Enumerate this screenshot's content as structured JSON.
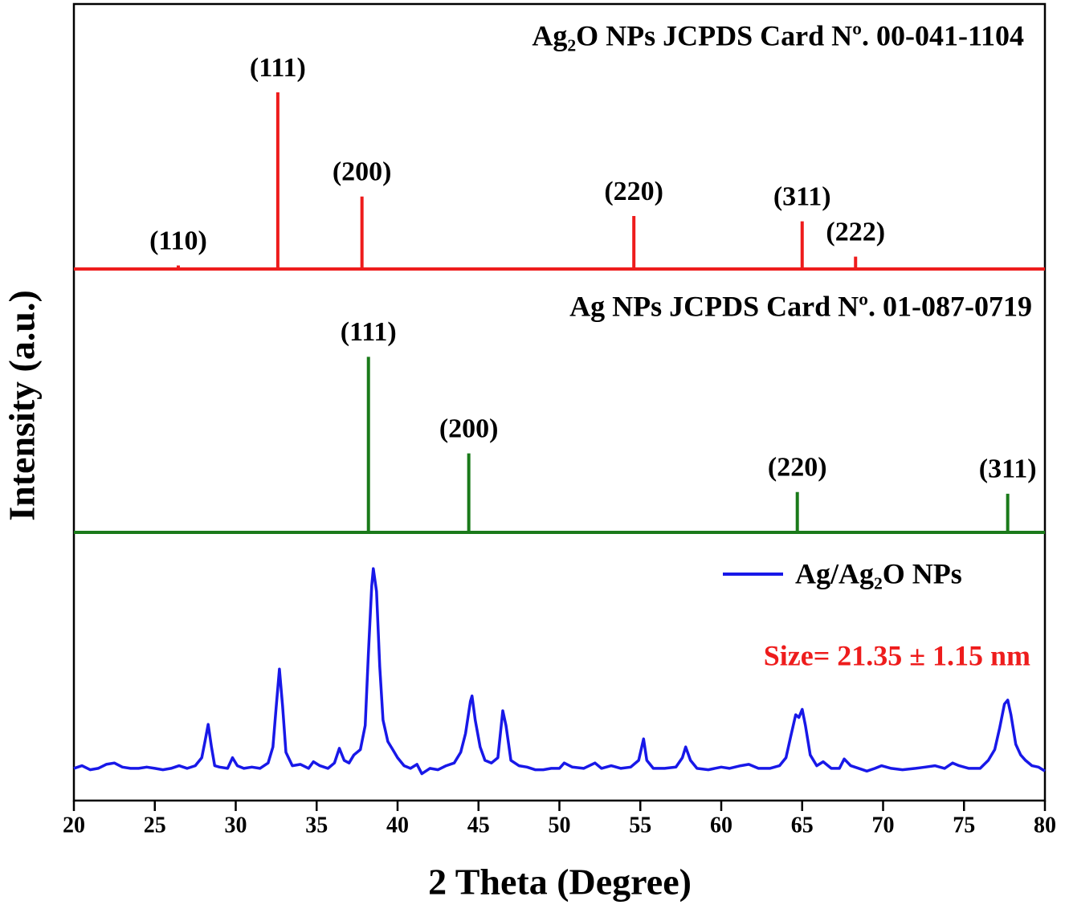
{
  "chart_data": [
    {
      "type": "stem",
      "title": "Ag₂O NPs  JCPDS Card Nº. 00-041-1104",
      "color": "#ee1c1c",
      "x": [
        26.45,
        32.6,
        37.8,
        54.6,
        65.0,
        68.3
      ],
      "values": [
        2,
        100,
        41,
        30,
        27,
        7
      ],
      "peak_labels": [
        "(110)",
        "(111)",
        "(200)",
        "(220)",
        "(311)",
        "(222)"
      ],
      "ylim": [
        0,
        150
      ]
    },
    {
      "type": "stem",
      "title": "Ag NPs  JCPDS Card Nº. 01-087-0719",
      "color": "#1a7a1a",
      "x": [
        38.2,
        44.4,
        64.7,
        77.7
      ],
      "values": [
        100,
        45,
        23,
        22
      ],
      "peak_labels": [
        "(111)",
        "(200)",
        "(220)",
        "(311)"
      ],
      "ylim": [
        0,
        150
      ]
    },
    {
      "type": "line",
      "xlabel": "2 Theta (Degree)",
      "ylabel": "Intensity (a.u.)",
      "annotation": "Size= 21.35 ± 1.15  nm",
      "xlim": [
        20,
        80
      ],
      "xticks": [
        20,
        25,
        30,
        35,
        40,
        45,
        50,
        55,
        60,
        65,
        70,
        75,
        80
      ],
      "ylim": [
        0,
        100
      ],
      "legend": "upper right",
      "x": [
        20,
        20.5,
        21,
        21.5,
        22,
        22.5,
        23,
        23.5,
        24,
        24.5,
        25,
        25.5,
        26,
        26.5,
        27,
        27.5,
        27.9,
        28.1,
        28.3,
        28.5,
        28.7,
        29,
        29.5,
        29.8,
        30.1,
        30.5,
        31,
        31.5,
        32,
        32.3,
        32.5,
        32.7,
        32.9,
        33.1,
        33.5,
        34,
        34.5,
        34.8,
        35.2,
        35.7,
        36.1,
        36.4,
        36.7,
        37,
        37.3,
        37.7,
        38,
        38.2,
        38.4,
        38.5,
        38.7,
        38.9,
        39.1,
        39.4,
        39.7,
        40,
        40.4,
        40.8,
        41.2,
        41.5,
        42,
        42.5,
        43,
        43.5,
        43.9,
        44.2,
        44.5,
        44.6,
        44.8,
        45.1,
        45.4,
        45.8,
        46.2,
        46.5,
        46.7,
        47,
        47.5,
        48,
        48.5,
        49,
        49.5,
        50,
        50.3,
        50.8,
        51.5,
        52.2,
        52.6,
        53.2,
        53.8,
        54.4,
        54.9,
        55.2,
        55.4,
        55.8,
        56.5,
        57.2,
        57.6,
        57.8,
        58.1,
        58.5,
        59.2,
        60,
        60.5,
        61.2,
        61.7,
        62.3,
        63,
        63.6,
        64,
        64.3,
        64.6,
        64.8,
        65,
        65.2,
        65.5,
        65.9,
        66.3,
        66.8,
        67.3,
        67.6,
        68,
        68.5,
        69,
        69.5,
        69.9,
        70.5,
        71.2,
        72,
        72.6,
        73.2,
        73.8,
        74.3,
        74.7,
        75.3,
        76,
        76.5,
        76.9,
        77.2,
        77.5,
        77.7,
        77.9,
        78.2,
        78.5,
        78.8,
        79.2,
        79.6,
        80
      ],
      "series": [
        {
          "name": "Ag/Ag₂O NPs",
          "color": "#1818e8",
          "values": [
            12,
            13,
            11.5,
            12,
            13.5,
            14,
            12.5,
            12,
            12,
            12.5,
            12,
            11.5,
            12,
            13,
            12,
            13,
            16,
            22,
            28.4,
            20,
            13,
            12.5,
            12,
            16,
            13,
            12,
            12.5,
            12,
            14,
            20,
            35,
            49,
            35,
            18,
            13,
            13.5,
            12,
            14.5,
            13,
            12,
            14,
            19.5,
            15,
            14,
            17,
            19,
            28,
            55,
            80,
            86.5,
            78,
            50,
            30,
            22,
            19,
            16,
            13,
            12,
            13.5,
            10,
            12,
            11.5,
            13,
            14,
            18,
            25,
            37,
            39,
            30,
            20,
            15,
            14,
            16,
            33.5,
            28,
            15,
            13,
            12.5,
            11.5,
            11.5,
            12,
            12,
            14,
            12.5,
            12,
            14,
            12,
            13,
            12,
            12.5,
            15,
            23,
            15,
            12,
            12,
            12.5,
            16,
            20,
            15,
            12,
            11.5,
            12.5,
            12,
            13,
            13.5,
            12,
            12,
            13,
            16,
            24,
            32,
            31,
            34,
            28,
            17,
            13,
            14.5,
            12,
            12,
            15.5,
            13,
            12,
            11,
            12,
            13,
            12,
            11.5,
            12,
            12.5,
            13,
            12,
            14,
            13,
            12,
            12,
            15,
            19,
            27,
            36,
            37.5,
            32,
            21,
            17,
            15,
            13,
            12.5,
            11
          ]
        }
      ]
    }
  ]
}
